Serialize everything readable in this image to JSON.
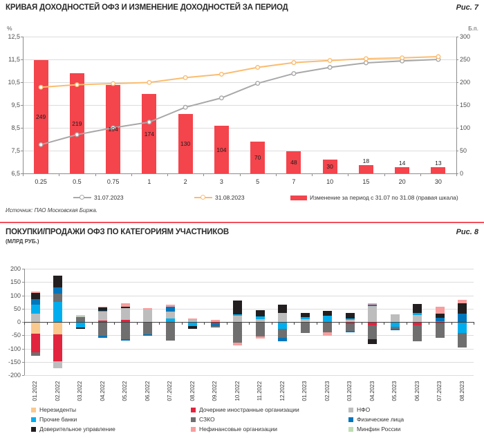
{
  "chart_data": [
    {
      "id": "fig7",
      "type": "bar-line-combo",
      "title": "КРИВАЯ ДОХОДНОСТЕЙ ОФЗ И ИЗМЕНЕНИЕ ДОХОДНОСТЕЙ ЗА ПЕРИОД",
      "fig_label": "Рис. 7",
      "left_unit": "%",
      "right_unit": "Б.п.",
      "source": "Источник: ПАО Московская Биржа.",
      "categories": [
        "0.25",
        "0.5",
        "0.75",
        "1",
        "2",
        "3",
        "5",
        "7",
        "10",
        "15",
        "20",
        "30"
      ],
      "left_axis": {
        "min": 6.5,
        "max": 12.5,
        "step": 1,
        "tick_labels": [
          "12,5",
          "11,5",
          "10,5",
          "9,5",
          "8,5",
          "7,5",
          "6,5"
        ]
      },
      "right_axis": {
        "min": 0,
        "max": 300,
        "step": 50,
        "tick_labels": [
          "300",
          "250",
          "200",
          "150",
          "100",
          "50",
          "0"
        ]
      },
      "grid": true,
      "legend_position": "bottom",
      "series": [
        {
          "name": "31.07.2023",
          "type": "line",
          "axis": "left",
          "color": "#a8a8a8",
          "values": [
            7.76,
            8.2,
            8.5,
            8.75,
            9.4,
            9.81,
            10.45,
            10.88,
            11.15,
            11.35,
            11.43,
            11.5
          ]
        },
        {
          "name": "31.08.2023",
          "type": "line",
          "axis": "left",
          "color": "#fbbc6f",
          "values": [
            10.28,
            10.39,
            10.44,
            10.49,
            10.7,
            10.85,
            11.15,
            11.36,
            11.45,
            11.53,
            11.57,
            11.62
          ]
        },
        {
          "name": "Изменение за период с 31.07 по 31.08 (правая шкала)",
          "type": "bar",
          "axis": "right",
          "color": "#f4444c",
          "values": [
            249,
            219,
            194,
            174,
            130,
            104,
            70,
            48,
            30,
            18,
            14,
            13
          ]
        }
      ]
    },
    {
      "id": "fig8",
      "type": "stacked-bar",
      "title": "ПОКУПКИ/ПРОДАЖИ ОФЗ ПО КАТЕГОРИЯМ УЧАСТНИКОВ",
      "subtitle": "(МЛРД РУБ.)",
      "fig_label": "Рис. 8",
      "ylabel": "млрд руб.",
      "y_axis": {
        "min": -200,
        "max": 200,
        "step": 50,
        "tick_labels": [
          "200",
          "150",
          "100",
          "50",
          "0",
          "-50",
          "-100",
          "-150",
          "-200"
        ]
      },
      "grid": true,
      "legend_position": "bottom",
      "series_defs": {
        "ner": {
          "label": "Нерезиденты",
          "color": "#fac98e"
        },
        "pb": {
          "label": "Прочие банки",
          "color": "#00aeef"
        },
        "du": {
          "label": "Доверительное управление",
          "color": "#231f20"
        },
        "dio": {
          "label": "Дочерние иностранные организации",
          "color": "#e2243f"
        },
        "szko": {
          "label": "СЗКО",
          "color": "#6f6f6f"
        },
        "nfin": {
          "label": "Нефинансовые организации",
          "color": "#f89e9e"
        },
        "nfo": {
          "label": "НФО",
          "color": "#bdbdbd"
        },
        "fl": {
          "label": "Физические лица",
          "color": "#0076bc"
        },
        "minfin": {
          "label": "Минфин России",
          "color": "#bfddb4"
        }
      },
      "legend_columns": [
        [
          "ner",
          "pb",
          "du"
        ],
        [
          "dio",
          "szko",
          "nfin"
        ],
        [
          "nfo",
          "fl",
          "minfin"
        ]
      ],
      "months": [
        {
          "m": "01.2022",
          "pos": [
            [
              "nfo",
              30
            ],
            [
              "pb",
              35
            ],
            [
              "fl",
              20
            ],
            [
              "du",
              25
            ],
            [
              "nfin",
              5
            ]
          ],
          "neg": [
            [
              "ner",
              45
            ],
            [
              "dio",
              69
            ],
            [
              "szko",
              13
            ]
          ]
        },
        {
          "m": "02.2022",
          "pos": [
            [
              "pb",
              76
            ],
            [
              "szko",
              31
            ],
            [
              "fl",
              24
            ],
            [
              "du",
              44
            ]
          ],
          "neg": [
            [
              "ner",
              46
            ],
            [
              "dio",
              101
            ],
            [
              "nfo",
              27
            ]
          ]
        },
        {
          "m": "03.2022",
          "pos": [
            [
              "szko",
              18
            ],
            [
              "nfo",
              4
            ],
            [
              "minfin",
              4
            ]
          ],
          "neg": [
            [
              "pb",
              20
            ],
            [
              "du",
              7
            ]
          ]
        },
        {
          "m": "04.2022",
          "pos": [
            [
              "dio",
              5
            ],
            [
              "nfo",
              33
            ],
            [
              "pb",
              4
            ],
            [
              "du",
              14
            ],
            [
              "nfin",
              2
            ]
          ],
          "neg": [
            [
              "szko",
              52
            ],
            [
              "fl",
              7
            ]
          ]
        },
        {
          "m": "05.2022",
          "pos": [
            [
              "dio",
              7
            ],
            [
              "nfo",
              45
            ],
            [
              "du",
              4
            ],
            [
              "nfin",
              14
            ]
          ],
          "neg": [
            [
              "szko",
              65
            ],
            [
              "fl",
              5
            ]
          ]
        },
        {
          "m": "06.2022",
          "pos": [
            [
              "nfo",
              48
            ],
            [
              "nfin",
              4
            ]
          ],
          "neg": [
            [
              "dio",
              3
            ],
            [
              "szko",
              45
            ],
            [
              "fl",
              5
            ]
          ]
        },
        {
          "m": "07.2022",
          "pos": [
            [
              "pb",
              13
            ],
            [
              "nfo",
              25
            ],
            [
              "fl",
              20
            ],
            [
              "nfin",
              6
            ]
          ],
          "neg": [
            [
              "szko",
              70
            ]
          ]
        },
        {
          "m": "08.2022",
          "pos": [
            [
              "nfo",
              8
            ],
            [
              "nfin",
              4
            ]
          ],
          "neg": [
            [
              "pb",
              15
            ],
            [
              "du",
              10
            ]
          ]
        },
        {
          "m": "09.2022",
          "pos": [
            [
              "nfin",
              7
            ]
          ],
          "neg": [
            [
              "dio",
              8
            ],
            [
              "fl",
              7
            ],
            [
              "szko",
              5
            ]
          ]
        },
        {
          "m": "10.2022",
          "pos": [
            [
              "nfo",
              23
            ],
            [
              "pb",
              6
            ],
            [
              "du",
              51
            ]
          ],
          "neg": [
            [
              "szko",
              78
            ],
            [
              "nfin",
              10
            ]
          ]
        },
        {
          "m": "11.2022",
          "pos": [
            [
              "nfo",
              10
            ],
            [
              "pb",
              12
            ],
            [
              "du",
              23
            ]
          ],
          "neg": [
            [
              "szko",
              55
            ],
            [
              "nfin",
              7
            ]
          ]
        },
        {
          "m": "12.2022",
          "pos": [
            [
              "nfo",
              33
            ],
            [
              "du",
              31
            ]
          ],
          "neg": [
            [
              "pb",
              27
            ],
            [
              "szko",
              32
            ],
            [
              "fl",
              15
            ]
          ]
        },
        {
          "m": "01.2023",
          "pos": [
            [
              "nfo",
              10
            ],
            [
              "pb",
              8
            ],
            [
              "du",
              17
            ]
          ],
          "neg": [
            [
              "szko",
              42
            ]
          ]
        },
        {
          "m": "02.2023",
          "pos": [
            [
              "pb",
              23
            ],
            [
              "du",
              19
            ]
          ],
          "neg": [
            [
              "szko",
              39
            ],
            [
              "nfin",
              12
            ]
          ]
        },
        {
          "m": "03.2023",
          "pos": [
            [
              "nfo",
              7
            ],
            [
              "pb",
              7
            ],
            [
              "du",
              19
            ]
          ],
          "neg": [
            [
              "dio",
              7
            ],
            [
              "szko",
              26
            ],
            [
              "fl",
              6
            ]
          ]
        },
        {
          "m": "04.2023",
          "pos": [
            [
              "nfo",
              60
            ],
            [
              "fl",
              5
            ],
            [
              "nfin",
              6
            ]
          ],
          "neg": [
            [
              "dio",
              13
            ],
            [
              "szko",
              53
            ],
            [
              "du",
              17
            ]
          ]
        },
        {
          "m": "05.2023",
          "pos": [
            [
              "nfo",
              29
            ]
          ],
          "neg": [
            [
              "pb",
              18
            ],
            [
              "szko",
              8
            ],
            [
              "fl",
              4
            ]
          ]
        },
        {
          "m": "06.2023",
          "pos": [
            [
              "nfo",
              26
            ],
            [
              "pb",
              9
            ],
            [
              "du",
              32
            ]
          ],
          "neg": [
            [
              "dio",
              12
            ],
            [
              "szko",
              62
            ]
          ]
        },
        {
          "m": "07.2023",
          "pos": [
            [
              "pb",
              3
            ],
            [
              "fl",
              13
            ],
            [
              "du",
              14
            ],
            [
              "nfin",
              26
            ]
          ],
          "neg": [
            [
              "dio",
              5
            ],
            [
              "szko",
              55
            ]
          ]
        },
        {
          "m": "08.2023",
          "pos": [
            [
              "fl",
              32
            ],
            [
              "du",
              39
            ],
            [
              "nfin",
              13
            ]
          ],
          "neg": [
            [
              "pb",
              42
            ],
            [
              "szko",
              55
            ]
          ]
        }
      ]
    }
  ],
  "colors": {
    "divider": "#f2505c",
    "grid": "#dcdcdc",
    "axis": "#8c8c8c",
    "zero_line": "#3f3f3f"
  }
}
